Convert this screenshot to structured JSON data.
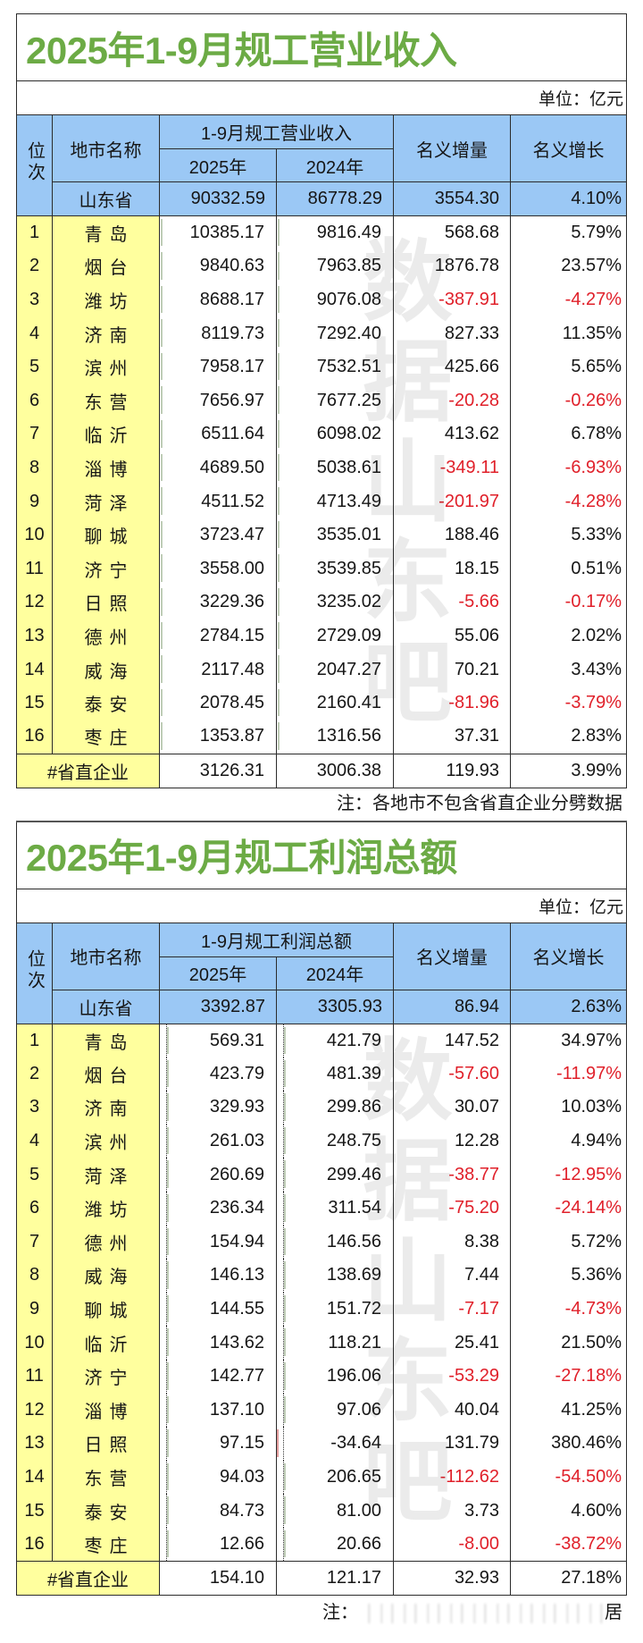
{
  "page": {
    "watermark": "数据山东吧"
  },
  "colors": {
    "title_green": "#6CAB45",
    "header_blue": "#9BC8F5",
    "city_yellow": "#FFFF9E",
    "negative_red": "#E0202A",
    "bar_green": "#5EA434"
  },
  "chart_data": [
    {
      "type": "table",
      "title": "2025年1-9月规工营业收入",
      "unit": "单位：亿元",
      "header": {
        "rank": "位次",
        "city": "地市名称",
        "group": "1-9月规工营业收入",
        "v2025": "2025年",
        "v2024": "2024年",
        "increment": "名义增量",
        "growth": "名义增长"
      },
      "total": {
        "city": "山东省",
        "v2025": "90332.59",
        "v2024": "86778.29",
        "increment": "3554.30",
        "growth": "4.10%"
      },
      "rows": [
        {
          "rank": "1",
          "city": "青岛",
          "v2025": "10385.17",
          "v2024": "9816.49",
          "increment": "568.68",
          "growth": "5.79%"
        },
        {
          "rank": "2",
          "city": "烟台",
          "v2025": "9840.63",
          "v2024": "7963.85",
          "increment": "1876.78",
          "growth": "23.57%"
        },
        {
          "rank": "3",
          "city": "潍坊",
          "v2025": "8688.17",
          "v2024": "9076.08",
          "increment": "-387.91",
          "growth": "-4.27%"
        },
        {
          "rank": "4",
          "city": "济南",
          "v2025": "8119.73",
          "v2024": "7292.40",
          "increment": "827.33",
          "growth": "11.35%"
        },
        {
          "rank": "5",
          "city": "滨州",
          "v2025": "7958.17",
          "v2024": "7532.51",
          "increment": "425.66",
          "growth": "5.65%"
        },
        {
          "rank": "6",
          "city": "东营",
          "v2025": "7656.97",
          "v2024": "7677.25",
          "increment": "-20.28",
          "growth": "-0.26%"
        },
        {
          "rank": "7",
          "city": "临沂",
          "v2025": "6511.64",
          "v2024": "6098.02",
          "increment": "413.62",
          "growth": "6.78%"
        },
        {
          "rank": "8",
          "city": "淄博",
          "v2025": "4689.50",
          "v2024": "5038.61",
          "increment": "-349.11",
          "growth": "-6.93%"
        },
        {
          "rank": "9",
          "city": "菏泽",
          "v2025": "4511.52",
          "v2024": "4713.49",
          "increment": "-201.97",
          "growth": "-4.28%"
        },
        {
          "rank": "10",
          "city": "聊城",
          "v2025": "3723.47",
          "v2024": "3535.01",
          "increment": "188.46",
          "growth": "5.33%"
        },
        {
          "rank": "11",
          "city": "济宁",
          "v2025": "3558.00",
          "v2024": "3539.85",
          "increment": "18.15",
          "growth": "0.51%"
        },
        {
          "rank": "12",
          "city": "日照",
          "v2025": "3229.36",
          "v2024": "3235.02",
          "increment": "-5.66",
          "growth": "-0.17%"
        },
        {
          "rank": "13",
          "city": "德州",
          "v2025": "2784.15",
          "v2024": "2729.09",
          "increment": "55.06",
          "growth": "2.02%"
        },
        {
          "rank": "14",
          "city": "威海",
          "v2025": "2117.48",
          "v2024": "2047.27",
          "increment": "70.21",
          "growth": "3.43%"
        },
        {
          "rank": "15",
          "city": "泰安",
          "v2025": "2078.45",
          "v2024": "2160.41",
          "increment": "-81.96",
          "growth": "-3.79%"
        },
        {
          "rank": "16",
          "city": "枣庄",
          "v2025": "1353.87",
          "v2024": "1316.56",
          "increment": "37.31",
          "growth": "2.83%"
        }
      ],
      "footer_row": {
        "city": "#省直企业",
        "v2025": "3126.31",
        "v2024": "3006.38",
        "increment": "119.93",
        "growth": "3.99%"
      },
      "note": "注：各地市不包含省直企业分劈数据"
    },
    {
      "type": "table",
      "title": "2025年1-9月规工利润总额",
      "unit": "单位：亿元",
      "header": {
        "rank": "位次",
        "city": "地市名称",
        "group": "1-9月规工利润总额",
        "v2025": "2025年",
        "v2024": "2024年",
        "increment": "名义增量",
        "growth": "名义增长"
      },
      "total": {
        "city": "山东省",
        "v2025": "3392.87",
        "v2024": "3305.93",
        "increment": "86.94",
        "growth": "2.63%"
      },
      "rows": [
        {
          "rank": "1",
          "city": "青岛",
          "v2025": "569.31",
          "v2024": "421.79",
          "increment": "147.52",
          "growth": "34.97%"
        },
        {
          "rank": "2",
          "city": "烟台",
          "v2025": "423.79",
          "v2024": "481.39",
          "increment": "-57.60",
          "growth": "-11.97%"
        },
        {
          "rank": "3",
          "city": "济南",
          "v2025": "329.93",
          "v2024": "299.86",
          "increment": "30.07",
          "growth": "10.03%"
        },
        {
          "rank": "4",
          "city": "滨州",
          "v2025": "261.03",
          "v2024": "248.75",
          "increment": "12.28",
          "growth": "4.94%"
        },
        {
          "rank": "5",
          "city": "菏泽",
          "v2025": "260.69",
          "v2024": "299.46",
          "increment": "-38.77",
          "growth": "-12.95%"
        },
        {
          "rank": "6",
          "city": "潍坊",
          "v2025": "236.34",
          "v2024": "311.54",
          "increment": "-75.20",
          "growth": "-24.14%"
        },
        {
          "rank": "7",
          "city": "德州",
          "v2025": "154.94",
          "v2024": "146.56",
          "increment": "8.38",
          "growth": "5.72%"
        },
        {
          "rank": "8",
          "city": "威海",
          "v2025": "146.13",
          "v2024": "138.69",
          "increment": "7.44",
          "growth": "5.36%"
        },
        {
          "rank": "9",
          "city": "聊城",
          "v2025": "144.55",
          "v2024": "151.72",
          "increment": "-7.17",
          "growth": "-4.73%"
        },
        {
          "rank": "10",
          "city": "临沂",
          "v2025": "143.62",
          "v2024": "118.21",
          "increment": "25.41",
          "growth": "21.50%"
        },
        {
          "rank": "11",
          "city": "济宁",
          "v2025": "142.77",
          "v2024": "196.06",
          "increment": "-53.29",
          "growth": "-27.18%"
        },
        {
          "rank": "12",
          "city": "淄博",
          "v2025": "137.10",
          "v2024": "97.06",
          "increment": "40.04",
          "growth": "41.25%"
        },
        {
          "rank": "13",
          "city": "日照",
          "v2025": "97.15",
          "v2024": "-34.64",
          "increment": "131.79",
          "growth": "380.46%"
        },
        {
          "rank": "14",
          "city": "东营",
          "v2025": "94.03",
          "v2024": "206.65",
          "increment": "-112.62",
          "growth": "-54.50%"
        },
        {
          "rank": "15",
          "city": "泰安",
          "v2025": "84.73",
          "v2024": "81.00",
          "increment": "3.73",
          "growth": "4.60%"
        },
        {
          "rank": "16",
          "city": "枣庄",
          "v2025": "12.66",
          "v2024": "20.66",
          "increment": "-8.00",
          "growth": "-38.72%"
        }
      ],
      "footer_row": {
        "city": "#省直企业",
        "v2025": "154.10",
        "v2024": "121.17",
        "increment": "32.93",
        "growth": "27.18%"
      },
      "note_prefix": "注：",
      "note_suffix": "居"
    }
  ]
}
